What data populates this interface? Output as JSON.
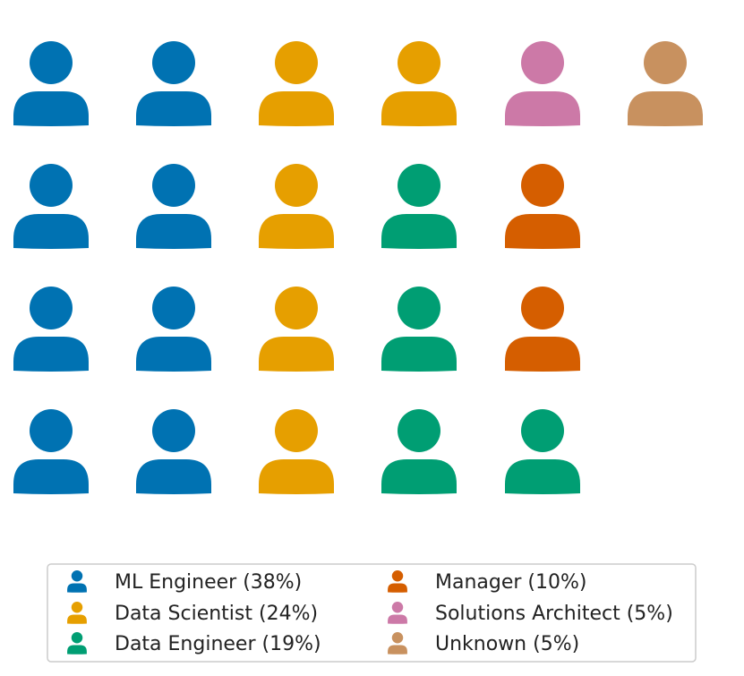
{
  "chart_data": {
    "type": "waffle",
    "title": "",
    "total_icons": 21,
    "icon": "person-icon",
    "layout": "columns-of-4",
    "legend_position": "bottom-center",
    "categories": [
      {
        "name": "ML Engineer",
        "percent": 38,
        "count": 8,
        "color": "#0072b2",
        "label": "ML Engineer (38%)"
      },
      {
        "name": "Data Scientist",
        "percent": 24,
        "count": 5,
        "color": "#e69f00",
        "label": "Data Scientist (24%)"
      },
      {
        "name": "Data Engineer",
        "percent": 19,
        "count": 4,
        "color": "#009e73",
        "label": "Data Engineer (19%)"
      },
      {
        "name": "Manager",
        "percent": 10,
        "count": 2,
        "color": "#d55e00",
        "label": "Manager (10%)"
      },
      {
        "name": "Solutions Architect",
        "percent": 5,
        "count": 1,
        "color": "#cc79a7",
        "label": "Solutions Architect (5%)"
      },
      {
        "name": "Unknown",
        "percent": 5,
        "count": 1,
        "color": "#c8915f",
        "label": "Unknown (5%)"
      }
    ]
  }
}
